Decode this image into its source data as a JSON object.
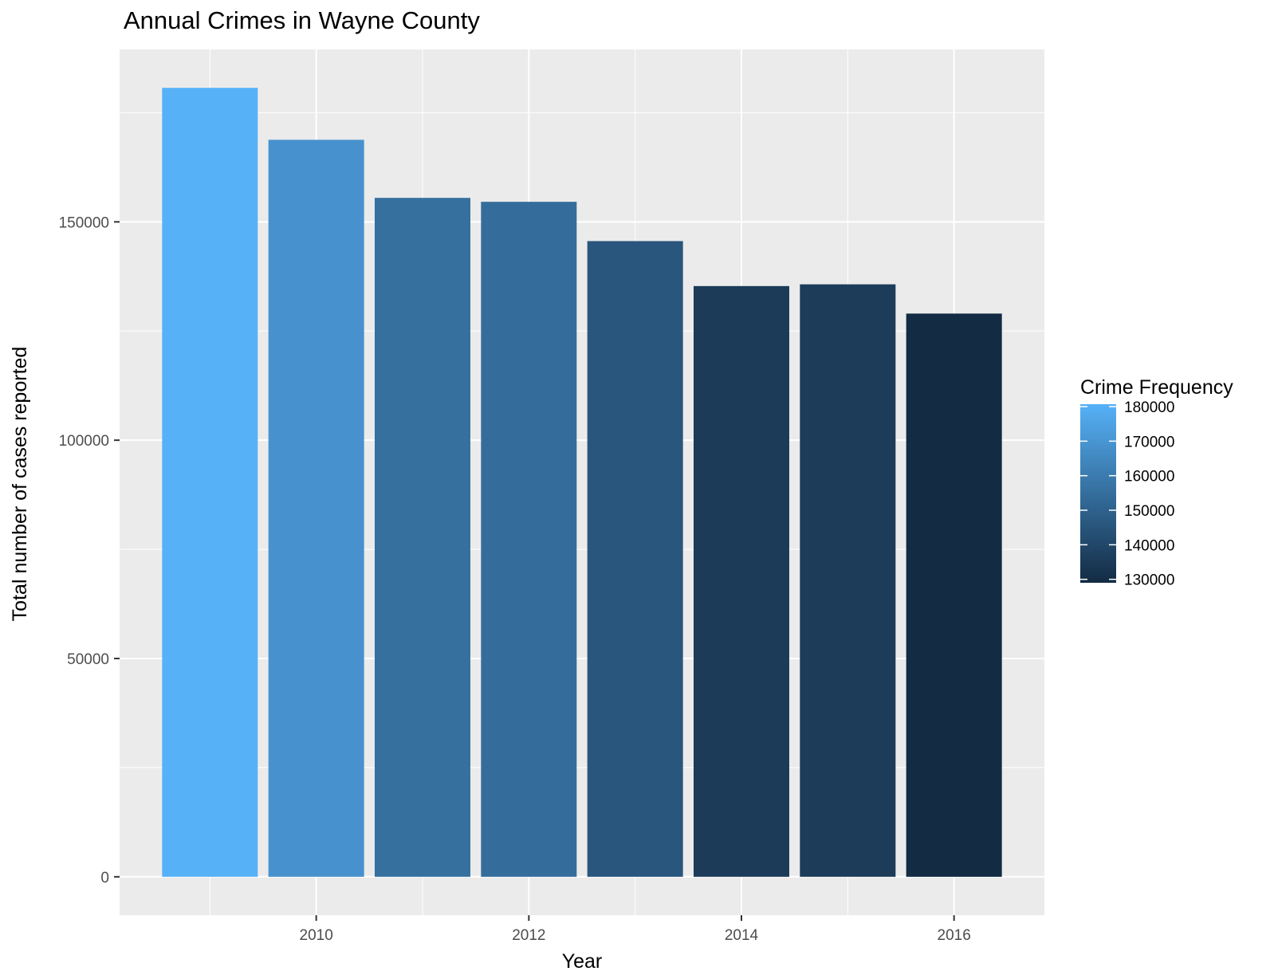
{
  "chart_data": {
    "type": "bar",
    "title": "Annual Crimes in Wayne County",
    "xlabel": "Year",
    "ylabel": "Total number of cases reported",
    "x": [
      2009,
      2010,
      2011,
      2012,
      2013,
      2014,
      2015,
      2016
    ],
    "values": [
      180700,
      168800,
      155500,
      154600,
      145600,
      135300,
      135700,
      129000
    ],
    "xlim": [
      2008.15,
      2016.85
    ],
    "ylim": [
      -8800,
      189500
    ],
    "x_ticks": [
      2010,
      2012,
      2014,
      2016
    ],
    "y_ticks": [
      0,
      50000,
      100000,
      150000
    ],
    "x_tick_labels": [
      "2010",
      "2012",
      "2014",
      "2016"
    ],
    "y_tick_labels": [
      "0",
      "50000",
      "100000",
      "150000"
    ],
    "grid": true,
    "panel_background": "#ebebeb",
    "grid_color": "#ffffff",
    "legend": {
      "title": "Crime Frequency",
      "placement": "right",
      "type": "colorbar",
      "range": [
        129000,
        180700
      ],
      "breaks": [
        130000,
        140000,
        150000,
        160000,
        170000,
        180000
      ],
      "labels": [
        "130000",
        "140000",
        "150000",
        "160000",
        "170000",
        "180000"
      ],
      "low_color": "#132b43",
      "high_color": "#56b1f7"
    }
  }
}
